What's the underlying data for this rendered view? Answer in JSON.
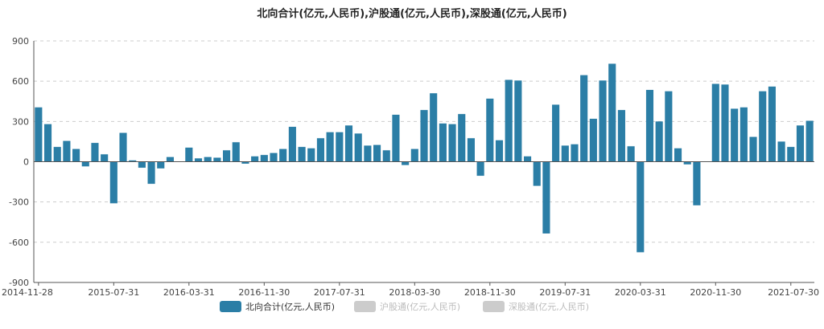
{
  "colors": {
    "bar": "#2b7ea6",
    "legend_inactive": "#cccccc",
    "grid": "#cccccc",
    "axis": "#555555"
  },
  "chart_data": {
    "type": "bar",
    "title": "北向合计(亿元,人民币),沪股通(亿元,人民币),深股通(亿元,人民币)",
    "xlabel": "",
    "ylabel": "",
    "ylim": [
      -900,
      900
    ],
    "yticks": [
      "900",
      "600",
      "300",
      "0",
      "-300",
      "-600",
      "-900"
    ],
    "xticks": [
      "2014-11-28",
      "2015-07-31",
      "2016-03-31",
      "2016-11-30",
      "2017-07-31",
      "2018-03-30",
      "2018-11-30",
      "2019-07-31",
      "2020-03-31",
      "2020-11-30",
      "2021-07-30"
    ],
    "grid": "horizontal dashed",
    "legend_position": "bottom",
    "legend": [
      {
        "name": "北向合计(亿元,人民币)",
        "active": true
      },
      {
        "name": "沪股通(亿元,人民币)",
        "active": false
      },
      {
        "name": "深股通(亿元,人民币)",
        "active": false
      }
    ],
    "series": [
      {
        "name": "北向合计(亿元,人民币)",
        "values": [
          405,
          280,
          110,
          155,
          95,
          -35,
          140,
          55,
          -310,
          215,
          10,
          -45,
          -165,
          -50,
          35,
          0,
          105,
          25,
          35,
          30,
          85,
          145,
          -15,
          40,
          50,
          65,
          95,
          260,
          110,
          100,
          175,
          220,
          220,
          270,
          210,
          120,
          125,
          85,
          350,
          -25,
          95,
          385,
          510,
          285,
          280,
          355,
          175,
          -105,
          470,
          160,
          610,
          605,
          40,
          -180,
          -535,
          425,
          120,
          130,
          645,
          320,
          605,
          730,
          385,
          115,
          -675,
          535,
          300,
          525,
          100,
          -20,
          -325,
          0,
          580,
          575,
          395,
          405,
          185,
          525,
          560,
          150,
          110,
          270,
          305
        ]
      }
    ]
  }
}
